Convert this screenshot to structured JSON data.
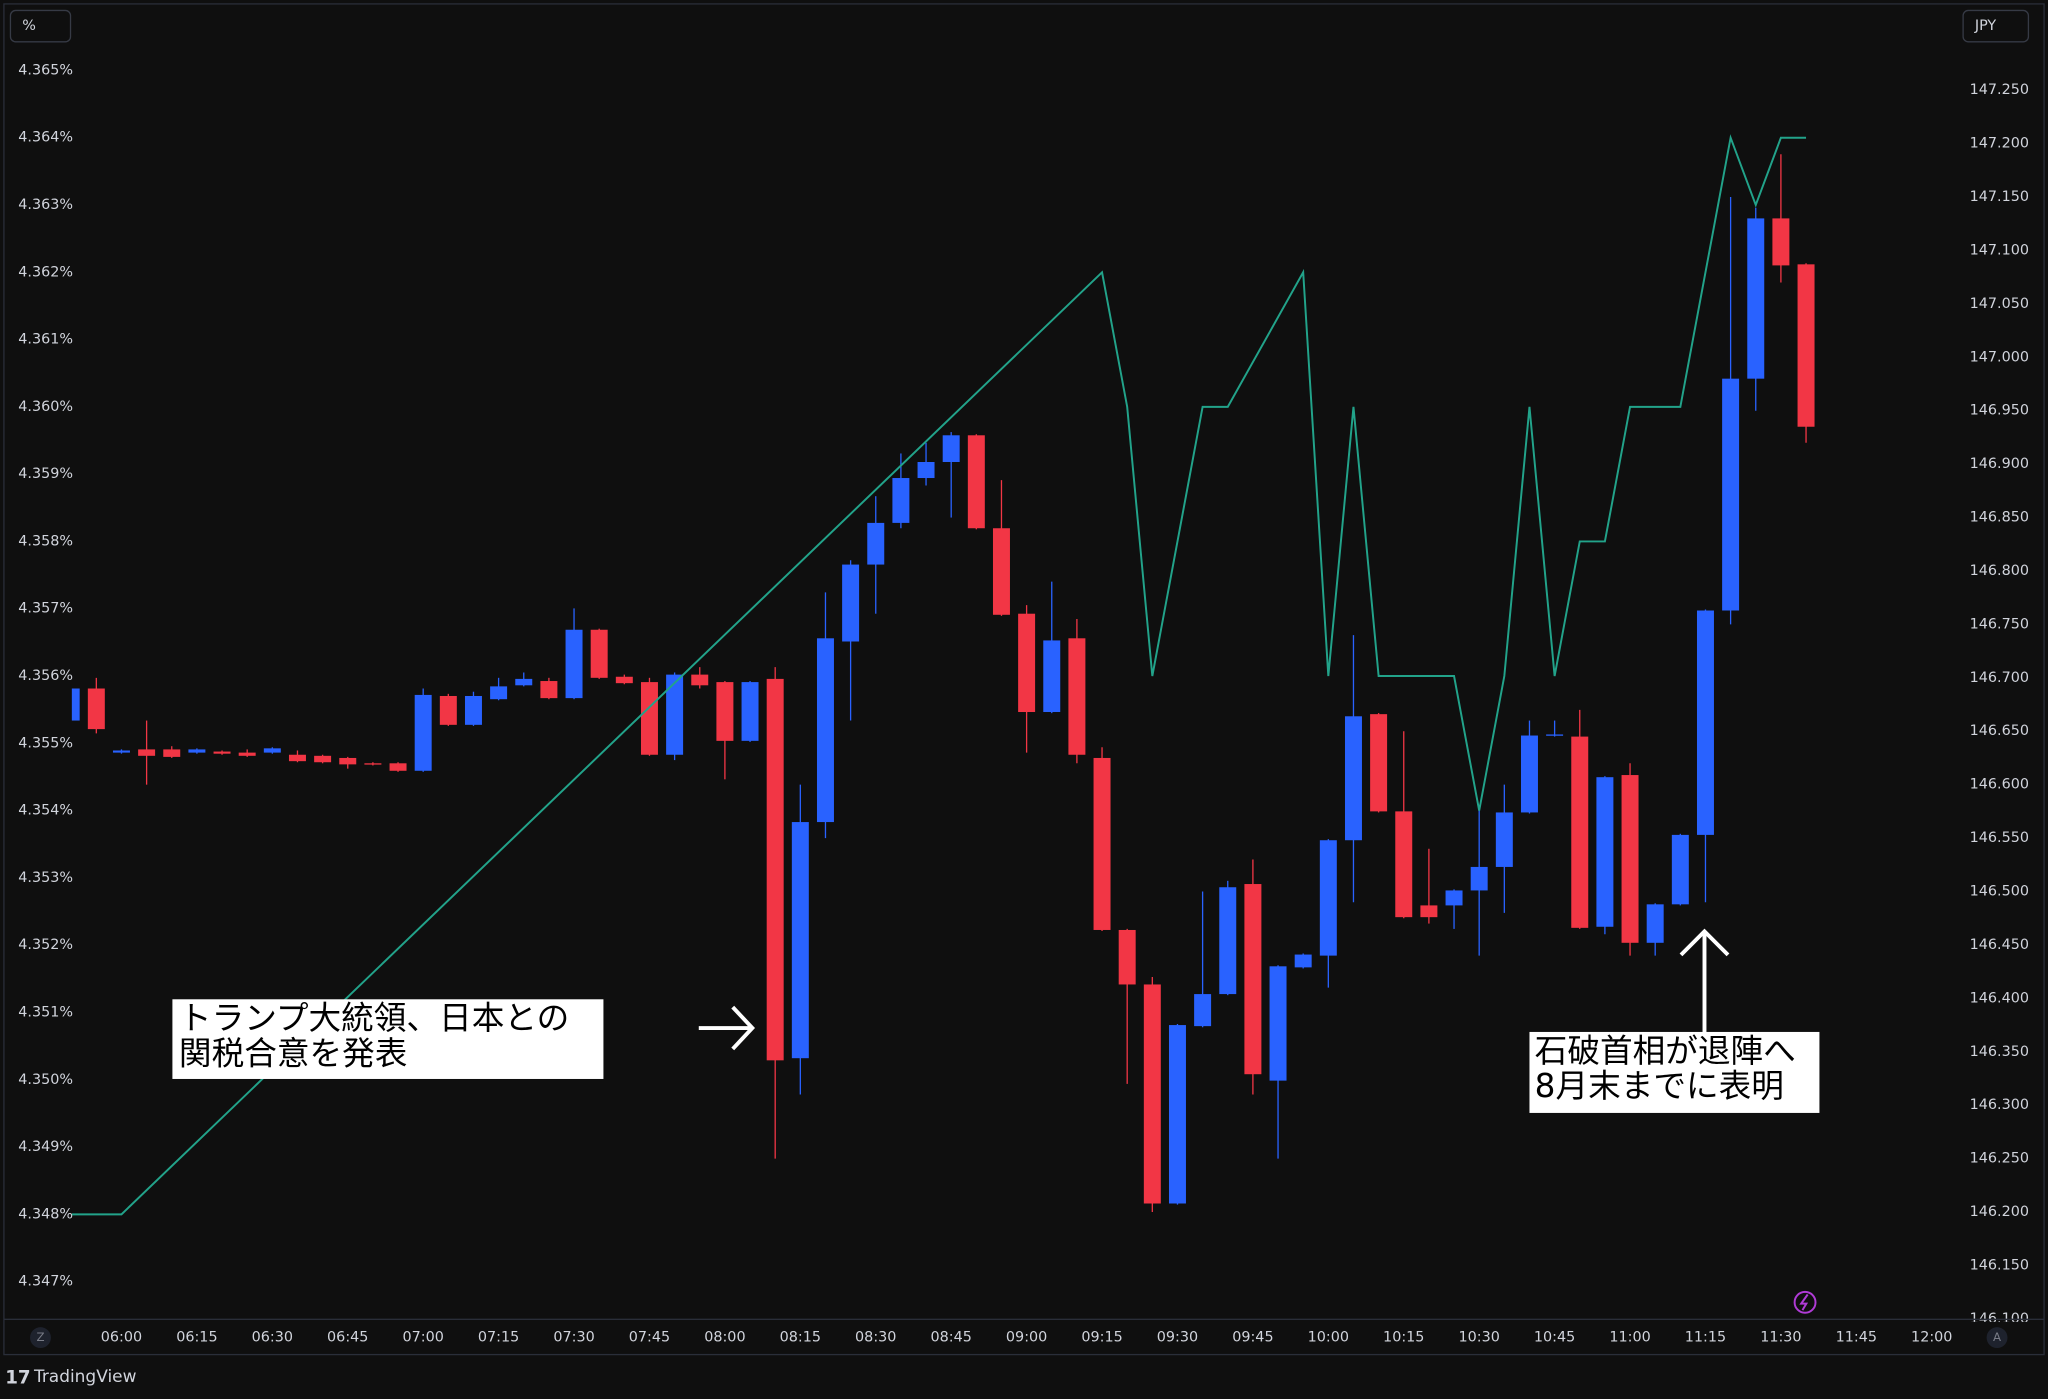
{
  "ui": {
    "left_unit": "%",
    "right_unit": "JPY",
    "brand": "TradingView",
    "scale_buttons": [
      "Z",
      "A"
    ]
  },
  "chart_data": {
    "type": "candlestick",
    "up_color": "#2962ff",
    "down_color": "#f23645",
    "grid": false,
    "x": [
      "05:50",
      "05:55",
      "06:00",
      "06:05",
      "06:10",
      "06:15",
      "06:20",
      "06:25",
      "06:30",
      "06:35",
      "06:40",
      "06:45",
      "06:50",
      "06:55",
      "07:00",
      "07:05",
      "07:10",
      "07:15",
      "07:20",
      "07:25",
      "07:30",
      "07:35",
      "07:40",
      "07:45",
      "07:50",
      "07:55",
      "08:00",
      "08:05",
      "08:10",
      "08:15",
      "08:20",
      "08:25",
      "08:30",
      "08:35",
      "08:40",
      "08:45",
      "08:50",
      "08:55",
      "09:00",
      "09:05",
      "09:10",
      "09:15",
      "09:20",
      "09:25",
      "09:30",
      "09:35",
      "09:40",
      "09:45",
      "09:50",
      "09:55",
      "10:00",
      "10:05",
      "10:10",
      "10:15",
      "10:20",
      "10:25",
      "10:30",
      "10:35",
      "10:40",
      "10:45",
      "10:50",
      "10:55",
      "11:00",
      "11:05",
      "11:10",
      "11:15",
      "11:20",
      "11:25",
      "11:30",
      "11:35"
    ],
    "open": [
      146.66,
      146.69,
      146.63,
      146.633,
      146.633,
      146.63,
      146.631,
      146.63,
      146.63,
      146.628,
      146.627,
      146.625,
      146.62,
      146.62,
      146.613,
      146.683,
      146.656,
      146.68,
      146.693,
      146.697,
      146.681,
      146.745,
      146.701,
      146.696,
      146.628,
      146.703,
      146.696,
      146.641,
      146.699,
      146.344,
      146.565,
      146.734,
      146.806,
      146.845,
      146.887,
      146.902,
      146.927,
      146.84,
      146.76,
      146.668,
      146.737,
      146.625,
      146.464,
      146.413,
      146.208,
      146.374,
      146.404,
      146.507,
      146.323,
      146.429,
      146.44,
      146.548,
      146.666,
      146.575,
      146.487,
      146.487,
      146.501,
      146.523,
      146.574,
      146.646,
      146.645,
      146.467,
      146.609,
      146.452,
      146.488,
      146.553,
      146.763,
      146.98,
      147.13,
      147.087
    ],
    "high": [
      146.69,
      146.7,
      146.633,
      146.66,
      146.636,
      146.634,
      146.632,
      146.633,
      146.635,
      146.632,
      146.628,
      146.626,
      146.621,
      146.621,
      146.69,
      146.685,
      146.687,
      146.7,
      146.705,
      146.7,
      146.765,
      146.746,
      146.703,
      146.7,
      146.705,
      146.71,
      146.697,
      146.697,
      146.71,
      146.6,
      146.78,
      146.81,
      146.87,
      146.91,
      146.92,
      146.93,
      146.928,
      146.885,
      146.768,
      146.79,
      146.755,
      146.635,
      146.465,
      146.42,
      146.376,
      146.5,
      146.51,
      146.53,
      146.431,
      146.442,
      146.549,
      146.74,
      146.667,
      146.65,
      146.54,
      146.502,
      146.58,
      146.6,
      146.66,
      146.66,
      146.67,
      146.608,
      146.62,
      146.489,
      146.554,
      146.764,
      147.15,
      147.14,
      147.19,
      147.088
    ],
    "low": [
      146.655,
      146.648,
      146.629,
      146.6,
      146.625,
      146.629,
      146.628,
      146.626,
      146.629,
      146.621,
      146.62,
      146.615,
      146.618,
      146.612,
      146.612,
      146.655,
      146.655,
      146.679,
      146.692,
      146.68,
      146.68,
      146.699,
      146.694,
      146.627,
      146.623,
      146.69,
      146.605,
      146.64,
      146.25,
      146.31,
      146.55,
      146.66,
      146.76,
      146.84,
      146.88,
      146.85,
      146.839,
      146.758,
      146.63,
      146.667,
      146.62,
      146.463,
      146.32,
      146.2,
      146.207,
      146.373,
      146.403,
      146.31,
      146.25,
      146.428,
      146.41,
      146.49,
      146.574,
      146.475,
      146.47,
      146.465,
      146.44,
      146.48,
      146.573,
      146.645,
      146.465,
      146.46,
      146.44,
      146.44,
      146.487,
      146.49,
      146.75,
      146.95,
      147.07,
      146.92
    ],
    "close": [
      146.69,
      146.652,
      146.632,
      146.627,
      146.626,
      146.633,
      146.629,
      146.627,
      146.634,
      146.622,
      146.621,
      146.619,
      146.619,
      146.613,
      146.684,
      146.656,
      146.683,
      146.692,
      146.699,
      146.681,
      146.745,
      146.7,
      146.695,
      146.628,
      146.703,
      146.693,
      146.641,
      146.696,
      146.342,
      146.565,
      146.737,
      146.806,
      146.845,
      146.887,
      146.902,
      146.927,
      146.84,
      146.759,
      146.668,
      146.735,
      146.628,
      146.464,
      146.413,
      146.208,
      146.375,
      146.404,
      146.504,
      146.329,
      146.43,
      146.441,
      146.548,
      146.664,
      146.575,
      146.476,
      146.476,
      146.501,
      146.523,
      146.574,
      146.646,
      146.647,
      146.466,
      146.607,
      146.452,
      146.488,
      146.553,
      146.763,
      146.98,
      147.13,
      147.086,
      146.935
    ],
    "y2lim": [
      146.0996,
      147.2855
    ],
    "y2ticks": [
      {
        "value": 147.25,
        "label": "147.250"
      },
      {
        "value": 147.2,
        "label": "147.200"
      },
      {
        "value": 147.15,
        "label": "147.150"
      },
      {
        "value": 147.1,
        "label": "147.100"
      },
      {
        "value": 147.05,
        "label": "147.050"
      },
      {
        "value": 147.0,
        "label": "147.000"
      },
      {
        "value": 146.95,
        "label": "146.950"
      },
      {
        "value": 146.9,
        "label": "146.900"
      },
      {
        "value": 146.85,
        "label": "146.850"
      },
      {
        "value": 146.8,
        "label": "146.800"
      },
      {
        "value": 146.75,
        "label": "146.750"
      },
      {
        "value": 146.7,
        "label": "146.700"
      },
      {
        "value": 146.65,
        "label": "146.650"
      },
      {
        "value": 146.6,
        "label": "146.600"
      },
      {
        "value": 146.55,
        "label": "146.550"
      },
      {
        "value": 146.5,
        "label": "146.500"
      },
      {
        "value": 146.45,
        "label": "146.450"
      },
      {
        "value": 146.4,
        "label": "146.400"
      },
      {
        "value": 146.35,
        "label": "146.350"
      },
      {
        "value": 146.3,
        "label": "146.300"
      },
      {
        "value": 146.25,
        "label": "146.250"
      },
      {
        "value": 146.2,
        "label": "146.200"
      },
      {
        "value": 146.15,
        "label": "146.150"
      },
      {
        "value": 146.1,
        "label": "146.100"
      }
    ],
    "ylim": [
      4.34644,
      4.36527
    ],
    "yticks": [
      {
        "value": 4.365,
        "label": "4.365%"
      },
      {
        "value": 4.364,
        "label": "4.364%"
      },
      {
        "value": 4.363,
        "label": "4.363%"
      },
      {
        "value": 4.362,
        "label": "4.362%"
      },
      {
        "value": 4.361,
        "label": "4.361%"
      },
      {
        "value": 4.36,
        "label": "4.360%"
      },
      {
        "value": 4.359,
        "label": "4.359%"
      },
      {
        "value": 4.358,
        "label": "4.358%"
      },
      {
        "value": 4.357,
        "label": "4.357%"
      },
      {
        "value": 4.356,
        "label": "4.356%"
      },
      {
        "value": 4.355,
        "label": "4.355%"
      },
      {
        "value": 4.354,
        "label": "4.354%"
      },
      {
        "value": 4.353,
        "label": "4.353%"
      },
      {
        "value": 4.352,
        "label": "4.352%"
      },
      {
        "value": 4.351,
        "label": "4.351%"
      },
      {
        "value": 4.35,
        "label": "4.350%"
      },
      {
        "value": 4.349,
        "label": "4.349%"
      },
      {
        "value": 4.348,
        "label": "4.348%"
      },
      {
        "value": 4.347,
        "label": "4.347%"
      }
    ],
    "xticks": [
      "06:00",
      "06:15",
      "06:30",
      "06:45",
      "07:00",
      "07:15",
      "07:30",
      "07:45",
      "08:00",
      "08:15",
      "08:30",
      "08:45",
      "09:00",
      "09:15",
      "09:30",
      "09:45",
      "10:00",
      "10:15",
      "10:30",
      "10:45",
      "11:00",
      "11:15",
      "11:30",
      "11:45",
      "12:00"
    ],
    "line": {
      "type": "line",
      "color": "#22a38a",
      "x": [
        "05:50",
        "06:00",
        "09:15",
        "09:20",
        "09:25",
        "09:35",
        "09:40",
        "09:55",
        "10:00",
        "10:05",
        "10:10",
        "10:25",
        "10:30",
        "10:35",
        "10:40",
        "10:45",
        "10:50",
        "10:55",
        "11:00",
        "11:10",
        "11:20",
        "11:25",
        "11:30",
        "11:35"
      ],
      "values": [
        4.348,
        4.348,
        4.362,
        4.36,
        4.356,
        4.36,
        4.36,
        4.362,
        4.356,
        4.36,
        4.356,
        4.356,
        4.354,
        4.356,
        4.36,
        4.356,
        4.358,
        4.358,
        4.36,
        4.36,
        4.364,
        4.363,
        4.364,
        4.364
      ]
    },
    "annotations": [
      {
        "lines": [
          "トランプ大統領、日本との",
          "関税合意を発表"
        ]
      },
      {
        "lines": [
          "石破首相が退陣へ",
          "8月末までに表明"
        ]
      }
    ]
  }
}
